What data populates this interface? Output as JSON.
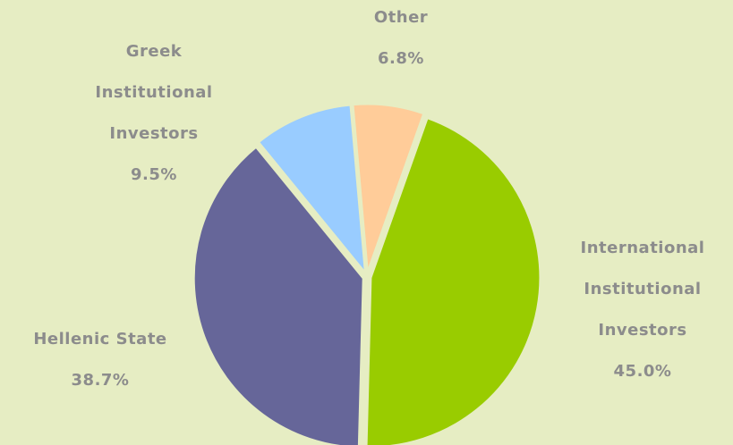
{
  "chart_data": {
    "type": "pie",
    "categories": [
      "Other",
      "International Institutional Investors",
      "Hellenic State",
      "Greek Institutional Investors"
    ],
    "values": [
      6.8,
      45.0,
      38.7,
      9.5
    ],
    "value_labels": [
      "6.8%",
      "45.0%",
      "38.7%",
      "9.5%"
    ],
    "colors": [
      "#ffcc99",
      "#99cc00",
      "#666699",
      "#99ccff"
    ]
  }
}
